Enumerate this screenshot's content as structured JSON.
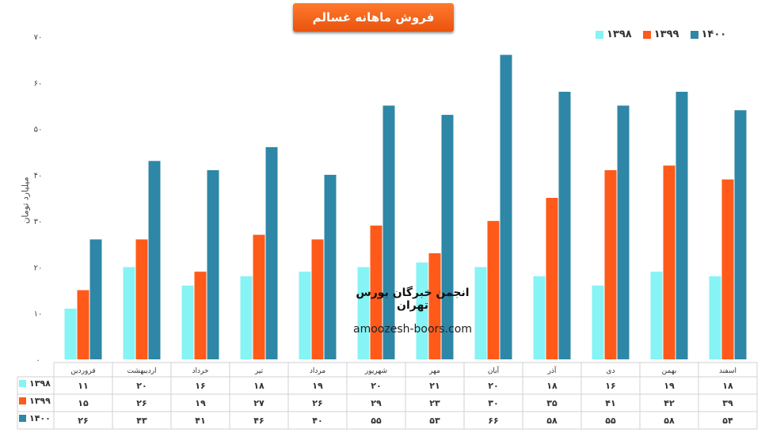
{
  "title": "فروش ماهانه غسالم",
  "chart_data": {
    "type": "bar",
    "categories": [
      "فروردین",
      "اردیبهشت",
      "خرداد",
      "تیر",
      "مرداد",
      "شهریور",
      "مهر",
      "آبان",
      "آذر",
      "دی",
      "بهمن",
      "اسفند"
    ],
    "series": [
      {
        "name": "۱۳۹۸",
        "color": "#86f3f5",
        "values": [
          11,
          20,
          16,
          18,
          19,
          20,
          21,
          20,
          18,
          16,
          19,
          18
        ],
        "labels": [
          "۱۱",
          "۲۰",
          "۱۶",
          "۱۸",
          "۱۹",
          "۲۰",
          "۲۱",
          "۲۰",
          "۱۸",
          "۱۶",
          "۱۹",
          "۱۸"
        ]
      },
      {
        "name": "۱۳۹۹",
        "color": "#ff5a1a",
        "values": [
          15,
          26,
          19,
          27,
          26,
          29,
          23,
          30,
          35,
          41,
          42,
          39
        ],
        "labels": [
          "۱۵",
          "۲۶",
          "۱۹",
          "۲۷",
          "۲۶",
          "۲۹",
          "۲۳",
          "۳۰",
          "۳۵",
          "۴۱",
          "۴۲",
          "۳۹"
        ]
      },
      {
        "name": "۱۴۰۰",
        "color": "#2e87a6",
        "values": [
          26,
          43,
          41,
          46,
          40,
          55,
          53,
          66,
          58,
          55,
          58,
          54
        ],
        "labels": [
          "۲۶",
          "۴۳",
          "۴۱",
          "۴۶",
          "۴۰",
          "۵۵",
          "۵۳",
          "۶۶",
          "۵۸",
          "۵۵",
          "۵۸",
          "۵۴"
        ]
      }
    ],
    "ylim": [
      0,
      70
    ],
    "yticks": [
      0,
      10,
      20,
      30,
      40,
      50,
      60,
      70
    ],
    "ytick_labels": [
      "۰",
      "۱۰",
      "۲۰",
      "۳۰",
      "۴۰",
      "۵۰",
      "۶۰",
      "۷۰"
    ],
    "ylabel": "میلیارد تومان",
    "legend_position": "top-right",
    "grid": false,
    "data_table": true
  },
  "watermark": {
    "line1": "انجمن خبرگان بورس تهران",
    "line2": "amoozesh-boors.com"
  }
}
